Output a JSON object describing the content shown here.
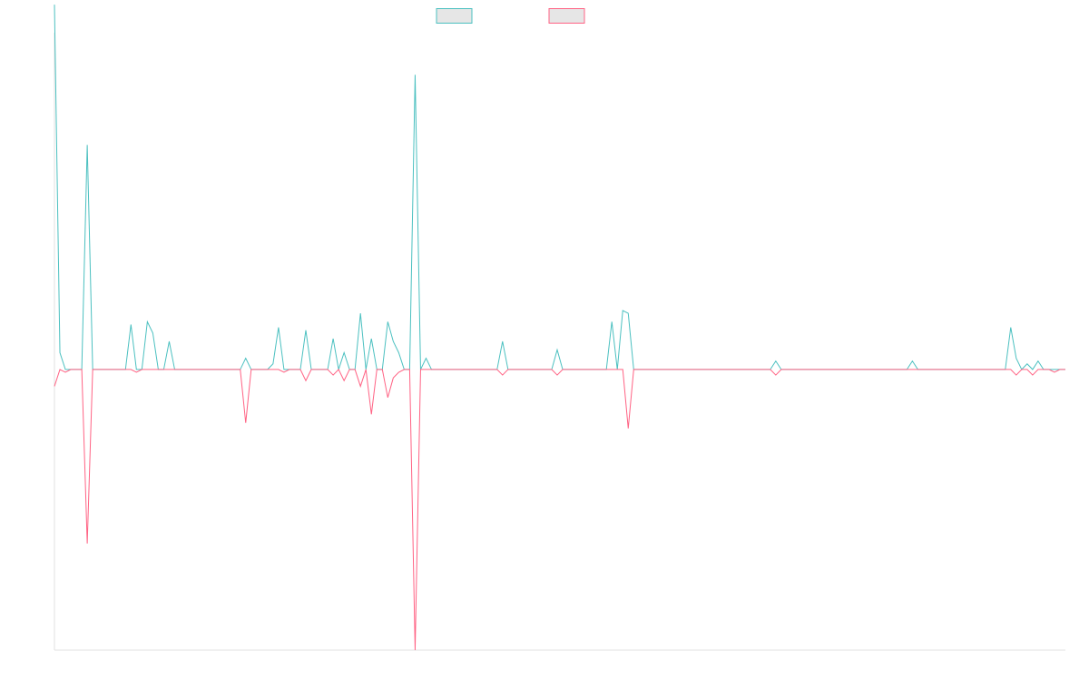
{
  "chart_data": {
    "type": "line",
    "title": "",
    "xlabel": "",
    "ylabel": "",
    "grid": false,
    "legend": "top-center",
    "x_count": 186,
    "ylim": [
      -100,
      120
    ],
    "series": [
      {
        "name": "",
        "color": "#4bc0c0",
        "legend_fill": "#e6e6e6",
        "points": [
          [
            0,
            130
          ],
          [
            1,
            6
          ],
          [
            3,
            0
          ],
          [
            5,
            0
          ],
          [
            6,
            80
          ],
          [
            7,
            0
          ],
          [
            9,
            0
          ],
          [
            10,
            0
          ],
          [
            11,
            0
          ],
          [
            12,
            0
          ],
          [
            13,
            0
          ],
          [
            14,
            16
          ],
          [
            15,
            0
          ],
          [
            16,
            0
          ],
          [
            17,
            17
          ],
          [
            18,
            13
          ],
          [
            19,
            0
          ],
          [
            20,
            0
          ],
          [
            21,
            10
          ],
          [
            22,
            0
          ],
          [
            26,
            0
          ],
          [
            31,
            0
          ],
          [
            34,
            0
          ],
          [
            35,
            4
          ],
          [
            36,
            0
          ],
          [
            38,
            0
          ],
          [
            39,
            0
          ],
          [
            40,
            2
          ],
          [
            41,
            15
          ],
          [
            42,
            0
          ],
          [
            43,
            0
          ],
          [
            44,
            0
          ],
          [
            45,
            0
          ],
          [
            46,
            14
          ],
          [
            47,
            0
          ],
          [
            50,
            0
          ],
          [
            51,
            11
          ],
          [
            52,
            0
          ],
          [
            53,
            6
          ],
          [
            54,
            0
          ],
          [
            55,
            0
          ],
          [
            56,
            20
          ],
          [
            57,
            0
          ],
          [
            58,
            11
          ],
          [
            59,
            0
          ],
          [
            60,
            0
          ],
          [
            61,
            17
          ],
          [
            62,
            10
          ],
          [
            63,
            6
          ],
          [
            64,
            0
          ],
          [
            65,
            0
          ],
          [
            66,
            105
          ],
          [
            67,
            0
          ],
          [
            68,
            4
          ],
          [
            69,
            0
          ],
          [
            80,
            0
          ],
          [
            81,
            0
          ],
          [
            82,
            10
          ],
          [
            83,
            0
          ],
          [
            84,
            0
          ],
          [
            85,
            0
          ],
          [
            90,
            0
          ],
          [
            91,
            0
          ],
          [
            92,
            7
          ],
          [
            93,
            0
          ],
          [
            96,
            0
          ],
          [
            97,
            0
          ],
          [
            98,
            0
          ],
          [
            99,
            0
          ],
          [
            100,
            0
          ],
          [
            101,
            0
          ],
          [
            102,
            17
          ],
          [
            103,
            0
          ],
          [
            104,
            21
          ],
          [
            105,
            20
          ],
          [
            106,
            0
          ],
          [
            107,
            0
          ],
          [
            120,
            0
          ],
          [
            121,
            0
          ],
          [
            122,
            0
          ],
          [
            123,
            0
          ],
          [
            130,
            0
          ],
          [
            131,
            0
          ],
          [
            132,
            3
          ],
          [
            133,
            0
          ],
          [
            155,
            0
          ],
          [
            156,
            0
          ],
          [
            157,
            3
          ],
          [
            158,
            0
          ],
          [
            170,
            0
          ],
          [
            173,
            0
          ],
          [
            174,
            0
          ],
          [
            175,
            15
          ],
          [
            176,
            4
          ],
          [
            177,
            0
          ],
          [
            178,
            2
          ],
          [
            179,
            0
          ],
          [
            180,
            3
          ],
          [
            181,
            0
          ],
          [
            182,
            0
          ],
          [
            183,
            0
          ],
          [
            184,
            0
          ],
          [
            185,
            0
          ]
        ]
      },
      {
        "name": "",
        "color": "#ff6384",
        "legend_fill": "#e6e6e6",
        "points": [
          [
            0,
            -6
          ],
          [
            1,
            0
          ],
          [
            2,
            -1
          ],
          [
            3,
            0
          ],
          [
            5,
            0
          ],
          [
            6,
            -62
          ],
          [
            7,
            0
          ],
          [
            10,
            0
          ],
          [
            13,
            0
          ],
          [
            14,
            0
          ],
          [
            15,
            -1
          ],
          [
            16,
            0
          ],
          [
            17,
            0
          ],
          [
            18,
            0
          ],
          [
            19,
            0
          ],
          [
            20,
            0
          ],
          [
            21,
            0
          ],
          [
            22,
            0
          ],
          [
            26,
            0
          ],
          [
            31,
            0
          ],
          [
            34,
            0
          ],
          [
            35,
            -19
          ],
          [
            36,
            0
          ],
          [
            38,
            0
          ],
          [
            39,
            0
          ],
          [
            40,
            0
          ],
          [
            41,
            0
          ],
          [
            42,
            -1
          ],
          [
            43,
            0
          ],
          [
            44,
            0
          ],
          [
            45,
            0
          ],
          [
            46,
            -4
          ],
          [
            47,
            0
          ],
          [
            50,
            0
          ],
          [
            51,
            -2
          ],
          [
            52,
            0
          ],
          [
            53,
            -4
          ],
          [
            54,
            0
          ],
          [
            55,
            0
          ],
          [
            56,
            -6
          ],
          [
            57,
            0
          ],
          [
            58,
            -16
          ],
          [
            59,
            0
          ],
          [
            60,
            0
          ],
          [
            61,
            -10
          ],
          [
            62,
            -3
          ],
          [
            63,
            -1
          ],
          [
            64,
            0
          ],
          [
            65,
            0
          ],
          [
            66,
            -100
          ],
          [
            67,
            0
          ],
          [
            68,
            0
          ],
          [
            69,
            0
          ],
          [
            80,
            0
          ],
          [
            81,
            0
          ],
          [
            82,
            -2
          ],
          [
            83,
            0
          ],
          [
            84,
            0
          ],
          [
            85,
            0
          ],
          [
            90,
            0
          ],
          [
            91,
            0
          ],
          [
            92,
            -2
          ],
          [
            93,
            0
          ],
          [
            96,
            0
          ],
          [
            97,
            0
          ],
          [
            98,
            0
          ],
          [
            99,
            0
          ],
          [
            100,
            0
          ],
          [
            101,
            0
          ],
          [
            102,
            0
          ],
          [
            103,
            0
          ],
          [
            104,
            0
          ],
          [
            105,
            -21
          ],
          [
            106,
            0
          ],
          [
            107,
            0
          ],
          [
            120,
            0
          ],
          [
            121,
            0
          ],
          [
            122,
            0
          ],
          [
            123,
            0
          ],
          [
            130,
            0
          ],
          [
            131,
            0
          ],
          [
            132,
            -2
          ],
          [
            133,
            0
          ],
          [
            155,
            0
          ],
          [
            156,
            0
          ],
          [
            157,
            0
          ],
          [
            158,
            0
          ],
          [
            170,
            0
          ],
          [
            173,
            0
          ],
          [
            174,
            0
          ],
          [
            175,
            0
          ],
          [
            176,
            -2
          ],
          [
            177,
            0
          ],
          [
            178,
            0
          ],
          [
            179,
            -2
          ],
          [
            180,
            0
          ],
          [
            181,
            0
          ],
          [
            182,
            0
          ],
          [
            183,
            -1
          ],
          [
            184,
            0
          ],
          [
            185,
            0
          ]
        ]
      }
    ]
  }
}
